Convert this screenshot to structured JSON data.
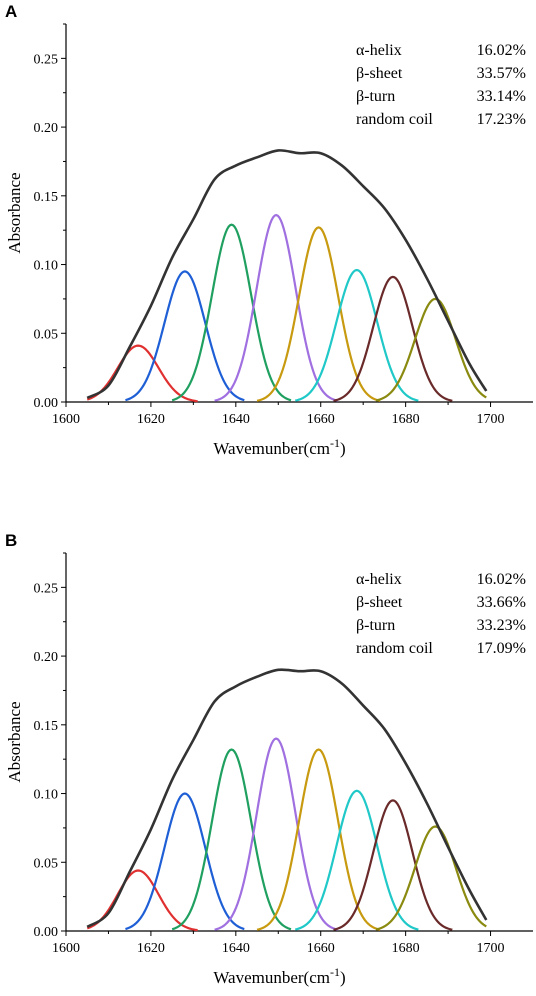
{
  "chart_data": [
    {
      "type": "line",
      "panel_label": "A",
      "xlabel": "Wavemunber(cm",
      "xlabel_sup": "-1",
      "xlabel_end": ")",
      "ylabel": "Absorbance",
      "xlim": [
        1600,
        1710
      ],
      "ylim": [
        0,
        0.275
      ],
      "xticks": [
        1600,
        1620,
        1640,
        1660,
        1680,
        1700
      ],
      "xtick_labels": [
        "1600",
        "1620",
        "1640",
        "1660",
        "1680",
        "1700"
      ],
      "yticks": [
        0,
        0.05,
        0.1,
        0.15,
        0.2,
        0.25
      ],
      "ytick_labels": [
        "0.00",
        "0.05",
        "0.10",
        "0.15",
        "0.20",
        "0.25"
      ],
      "grid": false,
      "legend_position": "top-right",
      "annotations": [
        {
          "label": "α-helix",
          "value": "16.02%"
        },
        {
          "label": "β-sheet",
          "value": "33.57%"
        },
        {
          "label": "β-turn",
          "value": "33.14%"
        },
        {
          "label": "random coil",
          "value": "17.23%"
        }
      ],
      "envelope": {
        "color": "#333333",
        "x": [
          1605,
          1610,
          1615,
          1620,
          1625,
          1630,
          1635,
          1640,
          1645,
          1650,
          1655,
          1660,
          1665,
          1670,
          1675,
          1680,
          1685,
          1690,
          1695,
          1699
        ],
        "y": [
          0.003,
          0.012,
          0.04,
          0.07,
          0.105,
          0.133,
          0.162,
          0.172,
          0.178,
          0.183,
          0.181,
          0.181,
          0.172,
          0.157,
          0.141,
          0.118,
          0.09,
          0.059,
          0.028,
          0.008
        ]
      },
      "series": [
        {
          "color": "#e03030",
          "center": 1617,
          "peak": 0.041,
          "width": 4.8,
          "range": [
            1605,
            1631
          ]
        },
        {
          "color": "#1f5fd6",
          "center": 1628,
          "peak": 0.095,
          "width": 4.8,
          "range": [
            1614,
            1642
          ]
        },
        {
          "color": "#20a060",
          "center": 1639,
          "peak": 0.129,
          "width": 4.6,
          "range": [
            1625,
            1653
          ]
        },
        {
          "color": "#a070e0",
          "center": 1649.5,
          "peak": 0.136,
          "width": 4.6,
          "range": [
            1635,
            1664
          ]
        },
        {
          "color": "#c89a10",
          "center": 1659.5,
          "peak": 0.127,
          "width": 4.6,
          "range": [
            1645,
            1674
          ]
        },
        {
          "color": "#20c8c8",
          "center": 1668.5,
          "peak": 0.096,
          "width": 4.8,
          "range": [
            1654,
            1683
          ]
        },
        {
          "color": "#6a2a2a",
          "center": 1677,
          "peak": 0.091,
          "width": 4.6,
          "range": [
            1663,
            1691
          ]
        },
        {
          "color": "#8a8a10",
          "center": 1687,
          "peak": 0.075,
          "width": 4.8,
          "range": [
            1673,
            1699
          ]
        }
      ]
    },
    {
      "type": "line",
      "panel_label": "B",
      "xlabel": "Wavemunber(cm",
      "xlabel_sup": "-1",
      "xlabel_end": ")",
      "ylabel": "Absorbance",
      "xlim": [
        1600,
        1710
      ],
      "ylim": [
        0,
        0.275
      ],
      "xticks": [
        1600,
        1620,
        1640,
        1660,
        1680,
        1700
      ],
      "xtick_labels": [
        "1600",
        "1620",
        "1640",
        "1660",
        "1680",
        "1700"
      ],
      "yticks": [
        0,
        0.05,
        0.1,
        0.15,
        0.2,
        0.25
      ],
      "ytick_labels": [
        "0.00",
        "0.05",
        "0.10",
        "0.15",
        "0.20",
        "0.25"
      ],
      "grid": false,
      "legend_position": "top-right",
      "annotations": [
        {
          "label": "α-helix",
          "value": "16.02%"
        },
        {
          "label": "β-sheet",
          "value": "33.66%"
        },
        {
          "label": "β-turn",
          "value": "33.23%"
        },
        {
          "label": "random coil",
          "value": "17.09%"
        }
      ],
      "envelope": {
        "color": "#333333",
        "x": [
          1605,
          1610,
          1615,
          1620,
          1625,
          1630,
          1635,
          1640,
          1645,
          1650,
          1655,
          1660,
          1665,
          1670,
          1675,
          1680,
          1685,
          1690,
          1695,
          1699
        ],
        "y": [
          0.003,
          0.013,
          0.043,
          0.074,
          0.11,
          0.139,
          0.167,
          0.178,
          0.185,
          0.19,
          0.189,
          0.189,
          0.18,
          0.164,
          0.147,
          0.122,
          0.093,
          0.061,
          0.03,
          0.008
        ]
      },
      "series": [
        {
          "color": "#e03030",
          "center": 1617,
          "peak": 0.044,
          "width": 4.8,
          "range": [
            1605,
            1631
          ]
        },
        {
          "color": "#1f5fd6",
          "center": 1628,
          "peak": 0.1,
          "width": 4.8,
          "range": [
            1614,
            1642
          ]
        },
        {
          "color": "#20a060",
          "center": 1639,
          "peak": 0.132,
          "width": 4.6,
          "range": [
            1625,
            1653
          ]
        },
        {
          "color": "#a070e0",
          "center": 1649.5,
          "peak": 0.14,
          "width": 4.6,
          "range": [
            1635,
            1664
          ]
        },
        {
          "color": "#c89a10",
          "center": 1659.5,
          "peak": 0.132,
          "width": 4.6,
          "range": [
            1645,
            1674
          ]
        },
        {
          "color": "#20c8c8",
          "center": 1668.5,
          "peak": 0.102,
          "width": 4.8,
          "range": [
            1654,
            1683
          ]
        },
        {
          "color": "#6a2a2a",
          "center": 1677,
          "peak": 0.095,
          "width": 4.6,
          "range": [
            1663,
            1691
          ]
        },
        {
          "color": "#8a8a10",
          "center": 1687,
          "peak": 0.076,
          "width": 4.8,
          "range": [
            1673,
            1699
          ]
        }
      ]
    }
  ]
}
